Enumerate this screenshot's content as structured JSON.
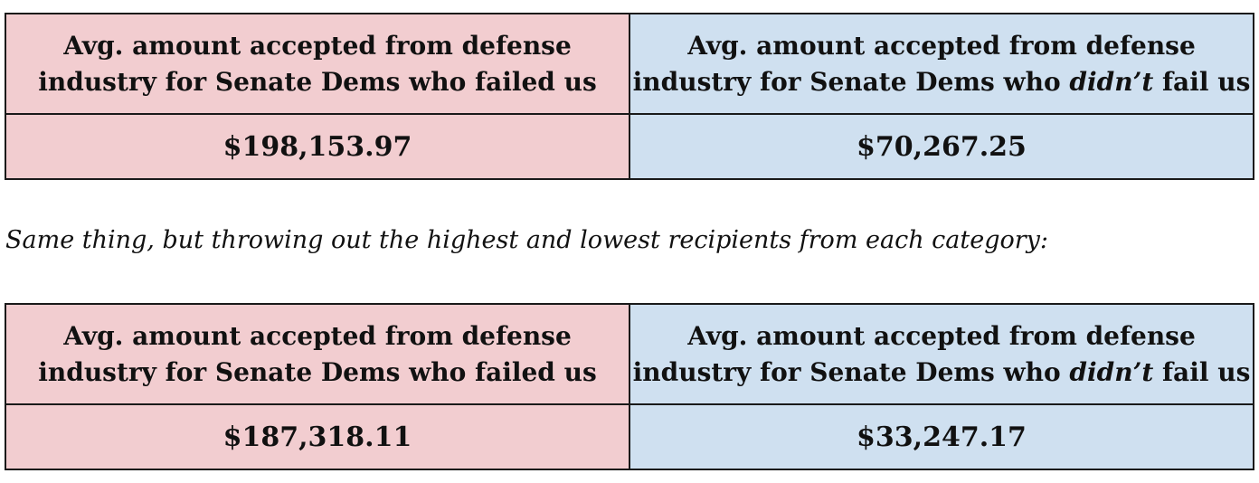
{
  "tables": [
    {
      "left_header": {
        "line1": "Avg. amount accepted from defense",
        "line2": "industry for Senate Dems who failed us"
      },
      "right_header": {
        "line1": "Avg. amount accepted from defense",
        "line2_pre": "industry for Senate Dems who ",
        "line2_emph": "didn’t",
        "line2_post": " fail us"
      },
      "left_value": "$198,153.97",
      "right_value": "$70,267.25"
    },
    {
      "left_header": {
        "line1": "Avg. amount accepted from defense",
        "line2": "industry for Senate Dems who failed us"
      },
      "right_header": {
        "line1": "Avg. amount accepted from defense",
        "line2_pre": "industry for Senate Dems who ",
        "line2_emph": "didn’t",
        "line2_post": " fail us"
      },
      "left_value": "$187,318.11",
      "right_value": "$33,247.17"
    }
  ],
  "caption": "Same thing, but throwing out the highest and lowest recipients from each category:",
  "colors": {
    "left_fill": "#f2cdd0",
    "right_fill": "#cfe0f0",
    "border": "#1a1a1a"
  }
}
